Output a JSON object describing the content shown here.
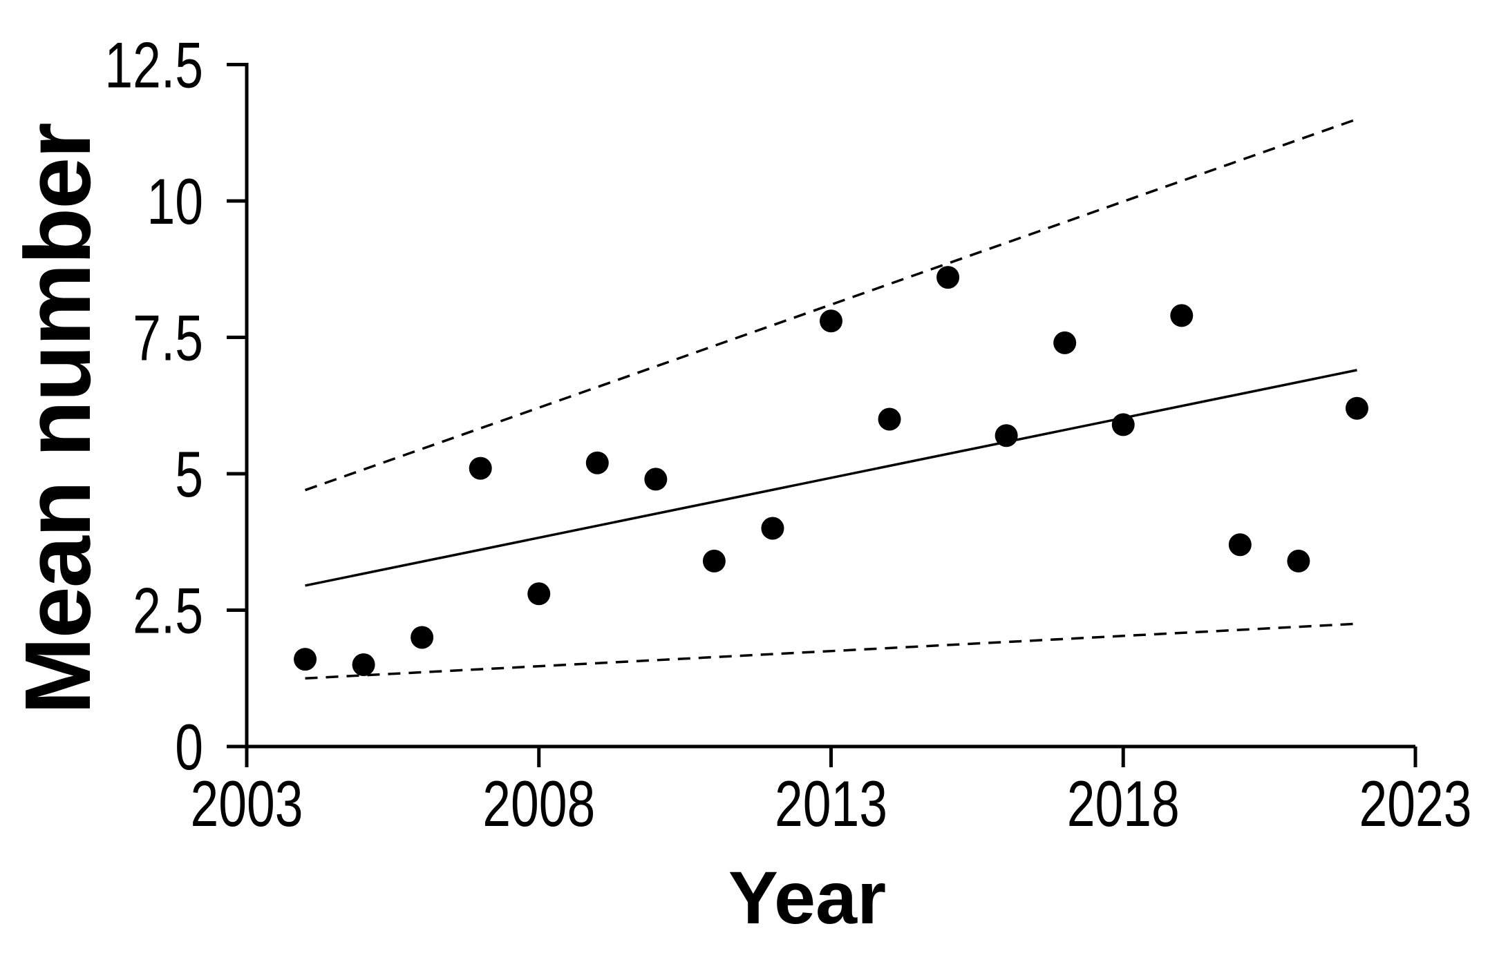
{
  "figure": {
    "background": "#ffffff",
    "ink_color": "#000000"
  },
  "chart_data": {
    "type": "scatter",
    "title": "",
    "xlabel": "Year",
    "ylabel": "Mean number",
    "x_ticks": [
      2003,
      2008,
      2013,
      2018,
      2023
    ],
    "y_ticks": [
      0,
      2.5,
      5,
      7.5,
      10,
      12.5
    ],
    "xlim": [
      2003,
      2023
    ],
    "ylim": [
      0,
      12.5
    ],
    "grid": false,
    "legend": false,
    "series": [
      {
        "name": "observed-mean",
        "type": "scatter",
        "marker": "filled-circle",
        "color": "#000000",
        "x": [
          2004,
          2005,
          2006,
          2007,
          2008,
          2009,
          2010,
          2011,
          2012,
          2013,
          2014,
          2015,
          2016,
          2017,
          2018,
          2019,
          2020,
          2021,
          2022
        ],
        "y": [
          1.6,
          1.5,
          2.0,
          5.1,
          2.8,
          5.2,
          4.9,
          3.4,
          4.0,
          7.8,
          6.0,
          8.6,
          5.7,
          7.4,
          5.9,
          7.9,
          3.7,
          3.4,
          6.2
        ]
      },
      {
        "name": "fitted-trend-line",
        "type": "line",
        "style": "solid",
        "color": "#000000",
        "x": [
          2004,
          2022
        ],
        "y": [
          2.95,
          6.9
        ]
      },
      {
        "name": "upper-confidence-limit",
        "type": "line",
        "style": "dashed",
        "color": "#000000",
        "x": [
          2004,
          2022
        ],
        "y": [
          4.7,
          11.5
        ]
      },
      {
        "name": "lower-confidence-limit",
        "type": "line",
        "style": "dashed",
        "color": "#000000",
        "x": [
          2004,
          2022
        ],
        "y": [
          1.25,
          2.25
        ]
      }
    ]
  }
}
